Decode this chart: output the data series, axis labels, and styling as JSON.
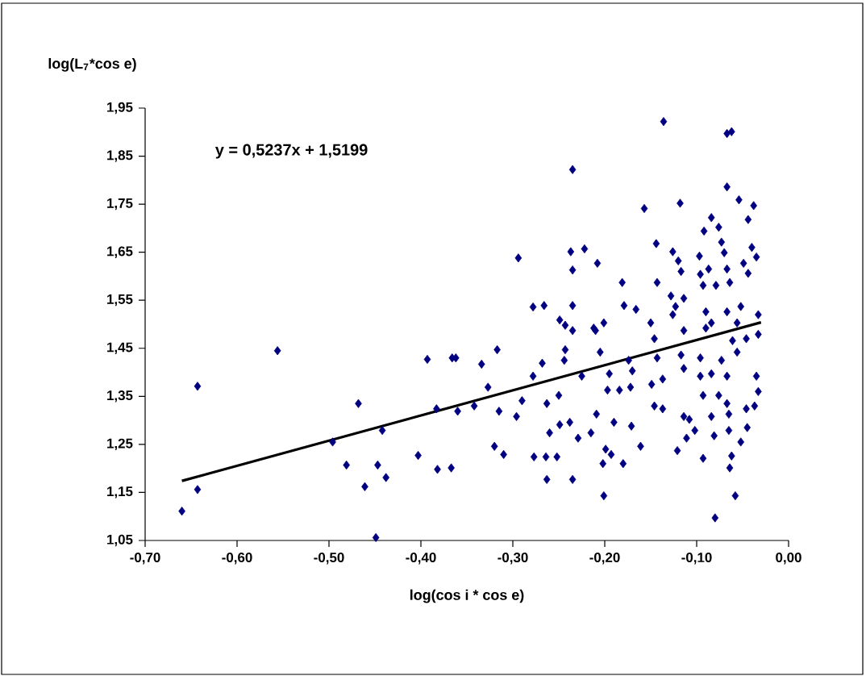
{
  "chart_data": {
    "type": "scatter",
    "ylabel": "log(L$_{7}$*cos e)",
    "xlabel": "log(cos i * cos e)",
    "annotations": [
      "y = 0,5237x + 1,5199"
    ],
    "xlim": [
      -0.7,
      0.0
    ],
    "ylim": [
      1.05,
      1.95
    ],
    "xticks": [
      {
        "value": -0.7,
        "label": "-0,70"
      },
      {
        "value": -0.6,
        "label": "-0,60"
      },
      {
        "value": -0.5,
        "label": "-0,50"
      },
      {
        "value": -0.4,
        "label": "-0,40"
      },
      {
        "value": -0.3,
        "label": "-0,30"
      },
      {
        "value": -0.2,
        "label": "-0,20"
      },
      {
        "value": -0.1,
        "label": "-0,10"
      },
      {
        "value": 0.0,
        "label": "0,00"
      }
    ],
    "yticks": [
      {
        "value": 1.05,
        "label": "1,05"
      },
      {
        "value": 1.15,
        "label": "1,15"
      },
      {
        "value": 1.25,
        "label": "1,25"
      },
      {
        "value": 1.35,
        "label": "1,35"
      },
      {
        "value": 1.45,
        "label": "1,45"
      },
      {
        "value": 1.55,
        "label": "1,55"
      },
      {
        "value": 1.65,
        "label": "1,65"
      },
      {
        "value": 1.75,
        "label": "1,75"
      },
      {
        "value": 1.85,
        "label": "1,85"
      },
      {
        "value": 1.95,
        "label": "1,95"
      }
    ],
    "marker": "diamond",
    "series": [
      {
        "color": "#000080",
        "x": [
          -0.66,
          -0.643,
          -0.643,
          -0.556,
          -0.496,
          -0.481,
          -0.468,
          -0.461,
          -0.449,
          -0.447,
          -0.442,
          -0.438,
          -0.403,
          -0.393,
          -0.382,
          -0.367,
          -0.366,
          -0.136,
          -0.067,
          -0.062,
          -0.235,
          -0.067,
          -0.054,
          -0.038,
          -0.044,
          -0.157,
          -0.118,
          -0.084,
          -0.076,
          -0.092,
          -0.144,
          -0.126,
          -0.073,
          -0.04,
          -0.035,
          -0.237,
          -0.222,
          -0.294,
          -0.235,
          -0.208,
          -0.12,
          -0.117,
          -0.097,
          -0.087,
          -0.07,
          -0.067,
          -0.049,
          -0.044,
          -0.181,
          -0.143,
          -0.096,
          -0.093,
          -0.079,
          -0.064,
          -0.128,
          -0.114,
          -0.278,
          -0.266,
          -0.235,
          -0.179,
          -0.166,
          -0.249,
          -0.212,
          -0.201,
          -0.235,
          -0.15,
          -0.126,
          -0.09,
          -0.084,
          -0.067,
          -0.052,
          -0.033,
          -0.056,
          -0.123,
          -0.243,
          -0.21,
          -0.146,
          -0.114,
          -0.09,
          -0.061,
          -0.046,
          -0.033,
          -0.362,
          -0.334,
          -0.317,
          -0.268,
          -0.243,
          -0.244,
          -0.205,
          -0.174,
          -0.143,
          -0.117,
          -0.096,
          -0.073,
          -0.056,
          -0.278,
          -0.225,
          -0.195,
          -0.17,
          -0.149,
          -0.137,
          -0.114,
          -0.096,
          -0.084,
          -0.067,
          -0.035,
          -0.327,
          -0.197,
          -0.184,
          -0.172,
          -0.25,
          -0.093,
          -0.076,
          -0.033,
          -0.383,
          -0.342,
          -0.36,
          -0.29,
          -0.263,
          -0.067,
          -0.146,
          -0.137,
          -0.046,
          -0.037,
          -0.315,
          -0.296,
          -0.209,
          -0.114,
          -0.084,
          -0.065,
          -0.19,
          -0.108,
          -0.249,
          -0.238,
          -0.171,
          -0.102,
          -0.045,
          -0.26,
          -0.215,
          -0.229,
          -0.065,
          -0.052,
          -0.111,
          -0.081,
          -0.32,
          -0.31,
          -0.161,
          -0.199,
          -0.193,
          -0.121,
          -0.277,
          -0.264,
          -0.252,
          -0.202,
          -0.18,
          -0.093,
          -0.062,
          -0.064,
          -0.263,
          -0.235,
          -0.201,
          -0.058,
          -0.08
        ],
        "values": [
          1.111,
          1.371,
          1.156,
          1.445,
          1.255,
          1.207,
          1.335,
          1.162,
          1.056,
          1.207,
          1.279,
          1.181,
          1.227,
          1.427,
          1.198,
          1.201,
          1.43,
          1.922,
          1.897,
          1.901,
          1.822,
          1.786,
          1.759,
          1.747,
          1.718,
          1.741,
          1.752,
          1.722,
          1.702,
          1.694,
          1.668,
          1.651,
          1.671,
          1.66,
          1.64,
          1.651,
          1.657,
          1.638,
          1.613,
          1.627,
          1.632,
          1.61,
          1.642,
          1.615,
          1.649,
          1.615,
          1.627,
          1.606,
          1.587,
          1.587,
          1.604,
          1.581,
          1.581,
          1.587,
          1.559,
          1.554,
          1.536,
          1.539,
          1.539,
          1.539,
          1.531,
          1.509,
          1.492,
          1.503,
          1.487,
          1.503,
          1.52,
          1.526,
          1.503,
          1.526,
          1.537,
          1.52,
          1.503,
          1.537,
          1.498,
          1.487,
          1.47,
          1.487,
          1.492,
          1.466,
          1.47,
          1.479,
          1.43,
          1.417,
          1.447,
          1.419,
          1.447,
          1.425,
          1.442,
          1.425,
          1.43,
          1.436,
          1.43,
          1.425,
          1.442,
          1.392,
          1.392,
          1.397,
          1.403,
          1.375,
          1.386,
          1.408,
          1.392,
          1.397,
          1.392,
          1.392,
          1.369,
          1.363,
          1.363,
          1.369,
          1.352,
          1.352,
          1.352,
          1.36,
          1.324,
          1.33,
          1.319,
          1.341,
          1.335,
          1.335,
          1.33,
          1.324,
          1.324,
          1.33,
          1.319,
          1.308,
          1.313,
          1.308,
          1.308,
          1.313,
          1.296,
          1.302,
          1.291,
          1.296,
          1.288,
          1.279,
          1.285,
          1.274,
          1.274,
          1.263,
          1.279,
          1.255,
          1.263,
          1.268,
          1.246,
          1.229,
          1.246,
          1.24,
          1.229,
          1.237,
          1.224,
          1.224,
          1.224,
          1.21,
          1.21,
          1.221,
          1.226,
          1.201,
          1.177,
          1.177,
          1.143,
          1.143,
          1.097
        ]
      },
      {
        "type": "line",
        "color": "#000000",
        "marker": "none",
        "line_style": "solid",
        "x": [
          -0.66,
          -0.03
        ],
        "values": [
          1.174,
          1.504
        ]
      }
    ]
  }
}
